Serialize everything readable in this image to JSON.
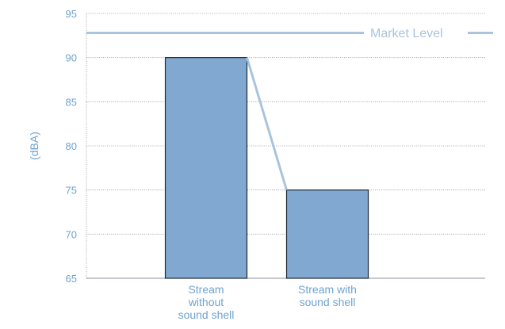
{
  "chart_data": {
    "type": "bar",
    "title": "",
    "xlabel": "",
    "ylabel": "(dBA)",
    "ylim": [
      65,
      95
    ],
    "yticks": [
      65,
      70,
      75,
      80,
      85,
      90,
      95
    ],
    "grid": true,
    "categories": [
      [
        "Stream",
        "without",
        "sound shell"
      ],
      [
        "Stream with",
        "sound shell"
      ]
    ],
    "values": [
      90,
      75
    ],
    "connector_line": true,
    "reference_line": {
      "label": "Market Level",
      "value": 92.8
    },
    "colors": {
      "bar_fill": "#80a8d0",
      "bar_stroke": "#1f2a36",
      "axis_text": "#6fa3cf",
      "grid": "#9aa0a6",
      "reference_line": "#a9c4de",
      "connector": "#a9c4de"
    }
  }
}
